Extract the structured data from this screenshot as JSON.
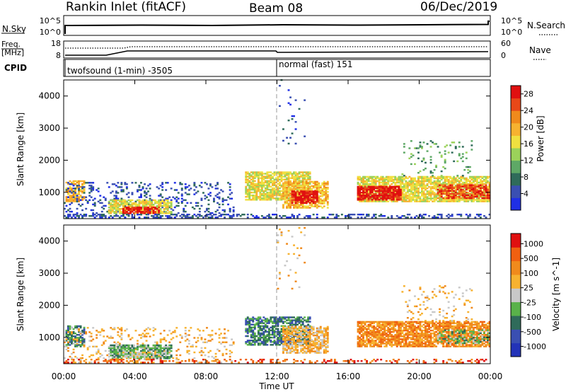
{
  "header": {
    "site": "Rankin Inlet (fitACF)",
    "beam": "Beam 08",
    "date": "06/Dec/2019"
  },
  "noise_panel": {
    "left_label": "N.Sky",
    "left_ticks": [
      "10^5",
      "10^0"
    ],
    "right_label": "N.Search",
    "right_ticks": [
      "10^5",
      "10^0"
    ]
  },
  "freq_panel": {
    "left_label_1": "Freq.",
    "left_label_2": "[MHz]",
    "left_ticks": [
      "18",
      "8"
    ],
    "right_label": "Nave",
    "right_ticks": [
      "60",
      "0"
    ]
  },
  "cpid_panel": {
    "label": "CPID",
    "segments": [
      {
        "text": "twofsound (1-min) -3505",
        "start_hour": 0
      },
      {
        "text": "normal (fast) 151",
        "start_hour": 12
      }
    ]
  },
  "x_axis": {
    "label": "Time UT",
    "ticks": [
      "00:00",
      "04:00",
      "08:00",
      "12:00",
      "16:00",
      "20:00",
      "00:00"
    ]
  },
  "chart_data": [
    {
      "type": "heatmap",
      "title": "",
      "quantity": "Power",
      "ylabel": "Slant Range [km]",
      "xlabel": "Time UT",
      "xlim_hours": [
        0,
        24
      ],
      "ylim_km": [
        180,
        4500
      ],
      "yticks": [
        1000,
        2000,
        3000,
        4000
      ],
      "colorbar": {
        "label": "Power [dB]",
        "ticks": [
          "4",
          "8",
          "12",
          "16",
          "20",
          "24",
          "28"
        ],
        "colors": [
          "#1f2fe6",
          "#3a4fb2",
          "#2f6b5a",
          "#5ea866",
          "#9bd25a",
          "#f0e040",
          "#f7b230",
          "#f08a1c",
          "#e84818",
          "#e01010"
        ]
      },
      "regions": [
        {
          "t0": 0.1,
          "t1": 1.1,
          "r0": 700,
          "r1": 1350,
          "level": 6,
          "density": 0.7
        },
        {
          "t0": 0.0,
          "t1": 9.5,
          "r0": 200,
          "r1": 1300,
          "level": 1,
          "density": 0.18
        },
        {
          "t0": 2.5,
          "t1": 6.0,
          "r0": 330,
          "r1": 780,
          "level": 5,
          "density": 0.75
        },
        {
          "t0": 3.3,
          "t1": 5.3,
          "r0": 330,
          "r1": 520,
          "level": 9,
          "density": 0.7
        },
        {
          "t0": 10.2,
          "t1": 13.8,
          "r0": 750,
          "r1": 1650,
          "level": 5,
          "density": 0.75
        },
        {
          "t0": 12.3,
          "t1": 14.8,
          "r0": 500,
          "r1": 1350,
          "level": 6,
          "density": 0.7
        },
        {
          "t0": 12.8,
          "t1": 14.2,
          "r0": 650,
          "r1": 1050,
          "level": 9,
          "density": 0.75
        },
        {
          "t0": 16.5,
          "t1": 24.0,
          "r0": 700,
          "r1": 1500,
          "level": 5,
          "density": 0.8
        },
        {
          "t0": 16.5,
          "t1": 19.0,
          "r0": 750,
          "r1": 1200,
          "level": 9,
          "density": 0.8
        },
        {
          "t0": 21.0,
          "t1": 24.0,
          "r0": 800,
          "r1": 1250,
          "level": 8,
          "density": 0.7
        },
        {
          "t0": 19.0,
          "t1": 23.0,
          "r0": 1500,
          "r1": 2600,
          "level": 3,
          "density": 0.1
        },
        {
          "t0": 0.0,
          "t1": 24.0,
          "r0": 200,
          "r1": 320,
          "level": 1,
          "density": 0.35
        },
        {
          "t0": 12.0,
          "t1": 13.5,
          "r0": 2500,
          "r1": 4500,
          "level": 1,
          "density": 0.03
        }
      ]
    },
    {
      "type": "heatmap",
      "title": "",
      "quantity": "Velocity",
      "ylabel": "Slant Range [km]",
      "xlabel": "Time UT",
      "xlim_hours": [
        0,
        24
      ],
      "ylim_km": [
        180,
        4500
      ],
      "yticks": [
        1000,
        2000,
        3000,
        4000
      ],
      "colorbar": {
        "label": "Velocity [m s^-1]",
        "ticks": [
          "1000",
          "500",
          "100",
          "25",
          "-25",
          "-100",
          "-500",
          "-1000"
        ],
        "colors": [
          "#2333b8",
          "#3a4fb2",
          "#2f6b5a",
          "#59b24a",
          "#c8c8c8",
          "#f7b230",
          "#f08a1c",
          "#f06010",
          "#e01010"
        ]
      },
      "regions": [
        {
          "t0": 0.1,
          "t1": 1.1,
          "r0": 700,
          "r1": 1350,
          "level": 2,
          "density": 0.6
        },
        {
          "t0": 0.0,
          "t1": 9.5,
          "r0": 200,
          "r1": 1300,
          "level": 5,
          "density": 0.15
        },
        {
          "t0": 2.5,
          "t1": 6.0,
          "r0": 330,
          "r1": 780,
          "level": 3,
          "density": 0.75
        },
        {
          "t0": 3.3,
          "t1": 5.3,
          "r0": 330,
          "r1": 520,
          "level": 4,
          "density": 0.7
        },
        {
          "t0": 10.2,
          "t1": 13.8,
          "r0": 750,
          "r1": 1650,
          "level": 2,
          "density": 0.65
        },
        {
          "t0": 12.3,
          "t1": 14.8,
          "r0": 500,
          "r1": 1350,
          "level": 5,
          "density": 0.7
        },
        {
          "t0": 16.5,
          "t1": 24.0,
          "r0": 700,
          "r1": 1500,
          "level": 6,
          "density": 0.8
        },
        {
          "t0": 21.0,
          "t1": 24.0,
          "r0": 800,
          "r1": 1250,
          "level": 3,
          "density": 0.35
        },
        {
          "t0": 19.0,
          "t1": 23.0,
          "r0": 1500,
          "r1": 2600,
          "level": 5,
          "density": 0.1
        },
        {
          "t0": 0.0,
          "t1": 24.0,
          "r0": 200,
          "r1": 320,
          "level": 7,
          "density": 0.3
        },
        {
          "t0": 12.0,
          "t1": 13.5,
          "r0": 2500,
          "r1": 4500,
          "level": 5,
          "density": 0.03
        }
      ]
    }
  ]
}
